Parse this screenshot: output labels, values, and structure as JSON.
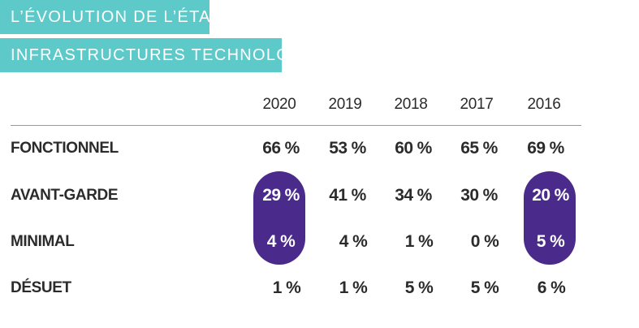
{
  "title": {
    "line1": "L’ÉVOLUTION DE L’ÉTAT DES",
    "line2": "INFRASTRUCTURES TECHNOLOGIQUES"
  },
  "colors": {
    "banner": "#5ec9c9",
    "highlight": "#4a2a8a",
    "text": "#2b2b2b"
  },
  "table": {
    "years": [
      "2020",
      "2019",
      "2018",
      "2017",
      "2016"
    ],
    "rows": [
      {
        "label": "FONCTIONNEL",
        "values": [
          "66 %",
          "53 %",
          "60 %",
          "65 %",
          "69 %"
        ]
      },
      {
        "label": "AVANT-GARDE",
        "values": [
          "29 %",
          "41 %",
          "34 %",
          "30 %",
          "20 %"
        ]
      },
      {
        "label": "MINIMAL",
        "values": [
          "4 %",
          "4 %",
          "1 %",
          "0 %",
          "5 %"
        ]
      },
      {
        "label": "DÉSUET",
        "values": [
          "1 %",
          "1 %",
          "5 %",
          "5 %",
          "6 %"
        ]
      }
    ],
    "highlighted_years": [
      "2020",
      "2016"
    ]
  }
}
